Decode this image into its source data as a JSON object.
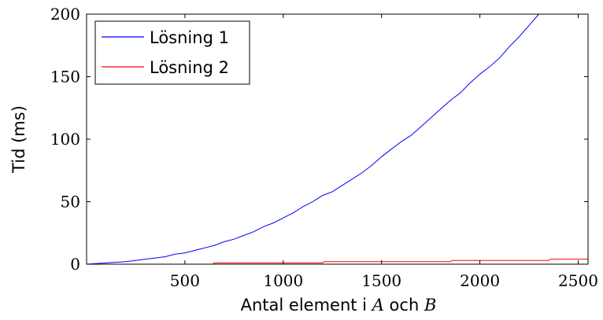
{
  "chart_data": {
    "type": "line",
    "xlabel_parts": [
      "Antal element i ",
      "A",
      " och ",
      "B"
    ],
    "ylabel": "Tid (ms)",
    "xlim": [
      0,
      2550
    ],
    "ylim": [
      0,
      200
    ],
    "xticks": [
      500,
      1000,
      1500,
      2000,
      2500
    ],
    "yticks": [
      0,
      50,
      100,
      150,
      200
    ],
    "grid": false,
    "legend_position": "top-left",
    "series": [
      {
        "name": "Lösning 1",
        "color": "#0000ff",
        "x": [
          0,
          50,
          100,
          150,
          200,
          250,
          300,
          350,
          400,
          450,
          500,
          550,
          600,
          650,
          700,
          750,
          800,
          850,
          900,
          950,
          1000,
          1050,
          1100,
          1150,
          1200,
          1250,
          1300,
          1350,
          1400,
          1450,
          1500,
          1550,
          1600,
          1650,
          1700,
          1750,
          1800,
          1850,
          1900,
          1950,
          2000,
          2050,
          2100,
          2150,
          2200,
          2250,
          2300
        ],
        "y": [
          0,
          0.5,
          1,
          1.5,
          2,
          3,
          4,
          5,
          6,
          8,
          9,
          11,
          13,
          15,
          18,
          20,
          23,
          26,
          30,
          33,
          37,
          41,
          46,
          50,
          55,
          58,
          63,
          68,
          73,
          79,
          86,
          92,
          98,
          103,
          110,
          117,
          124,
          131,
          137,
          145,
          152,
          158,
          165,
          174,
          182,
          191,
          200
        ]
      },
      {
        "name": "Lösning 2",
        "color": "#ff0000",
        "x": [
          0,
          640,
          650,
          1200,
          1210,
          1700,
          1710,
          1850,
          1860,
          2350,
          2360,
          2550
        ],
        "y": [
          0,
          0,
          1,
          1,
          2,
          2,
          2,
          2,
          3,
          3,
          4,
          4
        ]
      }
    ]
  }
}
